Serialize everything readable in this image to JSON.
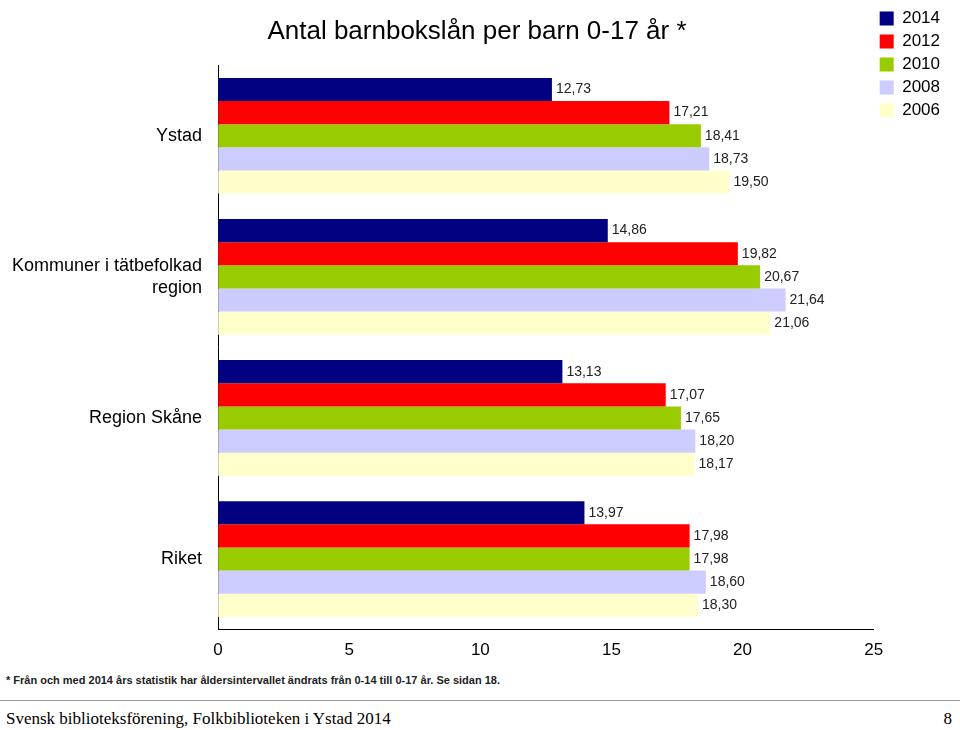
{
  "chart_data": {
    "type": "bar",
    "orientation": "horizontal",
    "title": "Antal barnbokslån per barn 0-17 år *",
    "categories": [
      "Ystad",
      "Kommuner i tätbefolkad region",
      "Region Skåne",
      "Riket"
    ],
    "series": [
      {
        "name": "2014",
        "color": "#000080",
        "values": [
          12.73,
          14.86,
          13.13,
          13.97
        ],
        "value_labels": [
          "12,73",
          "14,86",
          "13,13",
          "13,97"
        ]
      },
      {
        "name": "2012",
        "color": "#ff0000",
        "values": [
          17.21,
          19.82,
          17.07,
          17.98
        ],
        "value_labels": [
          "17,21",
          "19,82",
          "17,07",
          "17,98"
        ]
      },
      {
        "name": "2010",
        "color": "#99cc00",
        "values": [
          18.41,
          20.67,
          17.65,
          17.98
        ],
        "value_labels": [
          "18,41",
          "20,67",
          "17,65",
          "17,98"
        ]
      },
      {
        "name": "2008",
        "color": "#ccccff",
        "values": [
          18.73,
          21.64,
          18.2,
          18.6
        ],
        "value_labels": [
          "18,73",
          "21,64",
          "18,20",
          "18,60"
        ]
      },
      {
        "name": "2006",
        "color": "#ffffcc",
        "values": [
          19.5,
          21.06,
          18.17,
          18.3
        ],
        "value_labels": [
          "19,50",
          "21,06",
          "18,17",
          "18,30"
        ]
      }
    ],
    "xlim": [
      0,
      25
    ],
    "xticks": [
      0,
      5,
      10,
      15,
      20,
      25
    ],
    "grid": false,
    "legend": "top right",
    "data_labels": true,
    "annotations": [
      "* Från och med 2014 års statistik har åldersintervallet ändrats från 0-14 till 0-17 år. Se sidan 18.",
      "Svensk biblioteksförening, Folkbiblioteken i Ystad 2014",
      "8"
    ]
  }
}
